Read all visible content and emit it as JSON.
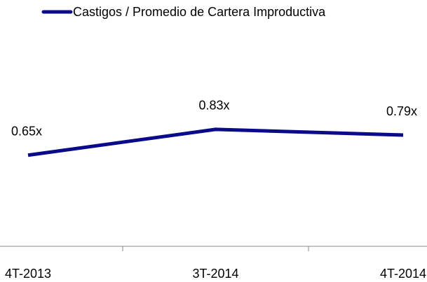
{
  "chart_data": {
    "type": "line",
    "categories": [
      "4T-2013",
      "3T-2014",
      "4T-2014"
    ],
    "series": [
      {
        "name": "Castigos / Promedio de Cartera Improductiva",
        "color": "#0a0a8a",
        "values": [
          0.65,
          0.83,
          0.79
        ],
        "value_labels": [
          "0.65x",
          "0.83x",
          "0.79x"
        ]
      }
    ]
  }
}
